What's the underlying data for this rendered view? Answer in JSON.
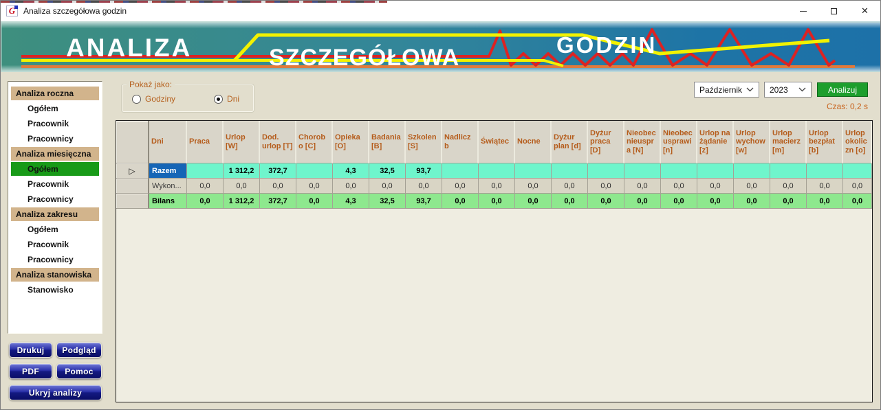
{
  "window": {
    "title": "Analiza szczegółowa godzin"
  },
  "banner": {
    "word1": "ANALIZA",
    "word2": "SZCZEGÓŁOWA",
    "word3": "GODZIN"
  },
  "show_as": {
    "label": "Pokaż jako:",
    "options": [
      {
        "label": "Godziny",
        "selected": false
      },
      {
        "label": "Dni",
        "selected": true
      }
    ]
  },
  "period": {
    "month": "Październik",
    "year": "2023",
    "analyze_label": "Analizuj",
    "time_label": "Czas: 0,2 s"
  },
  "sidebar": {
    "sections": [
      {
        "header": "Analiza roczna",
        "items": [
          {
            "label": "Ogółem"
          },
          {
            "label": "Pracownik"
          },
          {
            "label": "Pracownicy"
          }
        ]
      },
      {
        "header": "Analiza miesięczna",
        "items": [
          {
            "label": "Ogółem",
            "selected": true
          },
          {
            "label": "Pracownik"
          },
          {
            "label": "Pracownicy"
          }
        ]
      },
      {
        "header": "Analiza zakresu",
        "items": [
          {
            "label": "Ogółem"
          },
          {
            "label": "Pracownik"
          },
          {
            "label": "Pracownicy"
          }
        ]
      },
      {
        "header": "Analiza stanowiska",
        "items": [
          {
            "label": "Stanowisko"
          }
        ]
      }
    ]
  },
  "action_buttons": [
    {
      "label": "Drukuj"
    },
    {
      "label": "Podgląd"
    },
    {
      "label": "PDF"
    },
    {
      "label": "Pomoc"
    },
    {
      "label": "Ukryj analizy"
    }
  ],
  "table": {
    "columns": [
      "Dni",
      "Praca",
      "Urlop [W]",
      "Dod. urlop [T]",
      "Chorobo [C]",
      "Opieka [O]",
      "Badania [B]",
      "Szkolen [S]",
      "Nadliczb",
      "Świątec",
      "Nocne",
      "Dyżur plan [d]",
      "Dyżur praca [D]",
      "Nieobec nieuspra [N]",
      "Nieobec usprawi [n]",
      "Urlop na żądanie [z]",
      "Urlop wychow [w]",
      "Urlop macierz [m]",
      "Urlop bezpłat [b]",
      "Urlop okoliczn [o]"
    ],
    "rows": [
      {
        "label": "Razem",
        "style": "razem",
        "arrow": true,
        "values": [
          "",
          "1 312,2",
          "372,7",
          "",
          "4,3",
          "32,5",
          "93,7",
          "",
          "",
          "",
          "",
          "",
          "",
          "",
          "",
          "",
          "",
          "",
          ""
        ]
      },
      {
        "label": "Wykon...",
        "style": "wykon",
        "values": [
          "0,0",
          "0,0",
          "0,0",
          "0,0",
          "0,0",
          "0,0",
          "0,0",
          "0,0",
          "0,0",
          "0,0",
          "0,0",
          "0,0",
          "0,0",
          "0,0",
          "0,0",
          "0,0",
          "0,0",
          "0,0",
          "0,0"
        ]
      },
      {
        "label": "Bilans",
        "style": "bilans",
        "values": [
          "0,0",
          "1 312,2",
          "372,7",
          "0,0",
          "4,3",
          "32,5",
          "93,7",
          "0,0",
          "0,0",
          "0,0",
          "0,0",
          "0,0",
          "0,0",
          "0,0",
          "0,0",
          "0,0",
          "0,0",
          "0,0",
          "0,0"
        ]
      }
    ]
  },
  "colors": {
    "sidebar_section_bg": "#d2b48c",
    "sidebar_selected_bg": "#189a18",
    "grid_header_text": "#b55c1b",
    "razem_row_bg": "#6ff5cc",
    "bilans_row_bg": "#8ee88e",
    "selected_cell_bg": "#1565b6",
    "analyze_button_bg": "#1d9e2d",
    "time_text": "#c8641e",
    "banner_red": "#dd2222",
    "banner_yellow": "#f2f200",
    "banner_orange": "#e07a3c"
  }
}
